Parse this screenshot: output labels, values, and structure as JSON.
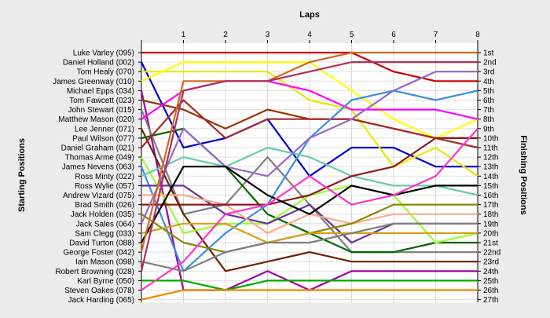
{
  "chart_data": {
    "type": "line",
    "title": "",
    "xlabel": "Laps",
    "ylabel_left": "Starting Positions",
    "ylabel_right": "Finishing Positions",
    "laps": [
      1,
      2,
      3,
      4,
      5,
      6,
      7,
      8
    ],
    "grid": true,
    "finish_labels": [
      "1st",
      "2nd",
      "3rd",
      "4th",
      "5th",
      "6th",
      "7th",
      "8th",
      "9th",
      "10th",
      "11th",
      "12th",
      "13th",
      "14th",
      "15th",
      "16th",
      "17th",
      "18th",
      "19th",
      "20th",
      "21st",
      "22nd",
      "23rd",
      "24th",
      "25th",
      "26th",
      "27th"
    ],
    "series": [
      {
        "name": "Luke Varley (095)",
        "color": "#cc0000",
        "positions": [
          1,
          1,
          1,
          1,
          1,
          1,
          3,
          4,
          4
        ]
      },
      {
        "name": "Daniel Holland (002)",
        "color": "#0000cc",
        "positions": [
          2,
          11,
          10,
          8,
          14,
          11,
          11,
          13,
          13
        ]
      },
      {
        "name": "Tom Healy (070)",
        "color": "#e8e800",
        "positions": [
          3,
          3,
          3,
          3,
          6,
          7,
          13,
          11,
          14
        ]
      },
      {
        "name": "James Greenway (010)",
        "color": "#ffff00",
        "positions": [
          4,
          2,
          2,
          2,
          2,
          5,
          8,
          10,
          8
        ]
      },
      {
        "name": "Michael Epps (034)",
        "color": "#a000a0",
        "positions": [
          5,
          26,
          26,
          24,
          26,
          24,
          24,
          24,
          24
        ]
      },
      {
        "name": "Tom Fawcett (023)",
        "color": "#993300",
        "positions": [
          6,
          7,
          9,
          7,
          8,
          8,
          9,
          10,
          10
        ]
      },
      {
        "name": "John Stewart (015)",
        "color": "#808080",
        "positions": [
          7,
          18,
          17,
          12,
          17,
          22,
          22,
          22,
          22
        ]
      },
      {
        "name": "Matthew Mason (020)",
        "color": "#ff00ff",
        "positions": [
          8,
          5,
          4,
          4,
          5,
          7,
          7,
          7,
          8
        ]
      },
      {
        "name": "Lee Jenner (071)",
        "color": "#6b2200",
        "positions": [
          9,
          18,
          24,
          23,
          22,
          23,
          23,
          23,
          23
        ]
      },
      {
        "name": "Paul Wilson (077)",
        "color": "#006600",
        "positions": [
          10,
          9,
          13,
          18,
          20,
          22,
          22,
          21,
          21
        ]
      },
      {
        "name": "Daniel Graham (021)",
        "color": "#a52a2a",
        "positions": [
          11,
          6,
          10,
          8,
          8,
          8,
          9,
          10,
          11
        ]
      },
      {
        "name": "Thomas Arme (049)",
        "color": "#99ff33",
        "positions": [
          12,
          20,
          19,
          19,
          16,
          15,
          16,
          21,
          20
        ]
      },
      {
        "name": "James Nevens (063)",
        "color": "#3c8ddd",
        "positions": [
          13,
          24,
          20,
          17,
          10,
          6,
          5,
          6,
          5
        ]
      },
      {
        "name": "Ross Minty (022)",
        "color": "#66ccaa",
        "positions": [
          14,
          12,
          13,
          11,
          12,
          14,
          15,
          15,
          16
        ]
      },
      {
        "name": "Ross Wylie (057)",
        "color": "#663399",
        "positions": [
          15,
          15,
          18,
          19,
          17,
          21,
          19,
          19,
          19
        ]
      },
      {
        "name": "Andrew Vizard (075)",
        "color": "#ffaa88",
        "positions": [
          16,
          16,
          17,
          20,
          18,
          19,
          18,
          18,
          18
        ]
      },
      {
        "name": "Brad Smith (026)",
        "color": "#8b1a1a",
        "positions": [
          17,
          17,
          17,
          17,
          16,
          14,
          13,
          10,
          10
        ]
      },
      {
        "name": "Jack Holden (035)",
        "color": "#888800",
        "positions": [
          18,
          21,
          22,
          21,
          20,
          19,
          17,
          17,
          17
        ]
      },
      {
        "name": "Jack Sales (064)",
        "color": "#9966cc",
        "positions": [
          19,
          9,
          13,
          14,
          10,
          8,
          5,
          3,
          3
        ]
      },
      {
        "name": "Sam Clegg (033)",
        "color": "#d4a017",
        "positions": [
          20,
          19,
          19,
          21,
          20,
          20,
          20,
          20,
          20
        ]
      },
      {
        "name": "David Turton (088)",
        "color": "#000000",
        "positions": [
          21,
          13,
          13,
          16,
          18,
          15,
          16,
          15,
          15
        ]
      },
      {
        "name": "George Foster (042)",
        "color": "#d2691e",
        "positions": [
          22,
          4,
          4,
          4,
          2,
          1,
          1,
          1,
          1
        ]
      },
      {
        "name": "Iain Mason (098)",
        "color": "#7f7f7f",
        "positions": [
          23,
          24,
          22,
          21,
          21,
          20,
          19,
          19,
          19
        ]
      },
      {
        "name": "Robert Browning (028)",
        "color": "#b03060",
        "positions": [
          24,
          5,
          4,
          4,
          3,
          2,
          2,
          2,
          2
        ]
      },
      {
        "name": "Karl Byrne (050)",
        "color": "#00aa00",
        "positions": [
          25,
          25,
          26,
          25,
          25,
          25,
          25,
          25,
          25
        ]
      },
      {
        "name": "Steven Oakes (078)",
        "color": "#ff33cc",
        "positions": [
          26,
          23,
          18,
          17,
          14,
          17,
          16,
          14,
          9
        ]
      },
      {
        "name": "Jack Harding (065)",
        "color": "#ee8800",
        "positions": [
          27,
          26,
          26,
          26,
          26,
          26,
          26,
          26,
          26
        ]
      }
    ]
  }
}
